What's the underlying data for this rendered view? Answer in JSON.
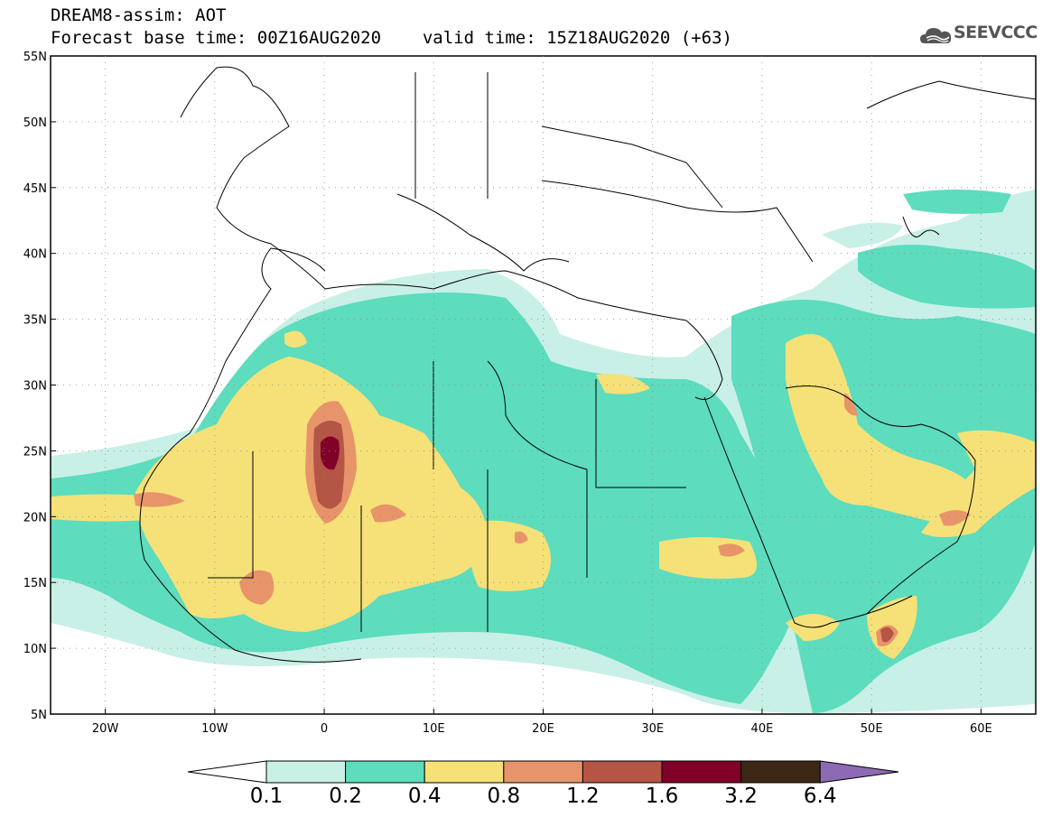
{
  "header": {
    "line1": "DREAM8-assim: AOT",
    "base_label": "Forecast base time: 00Z16AUG2020",
    "valid_label": "valid time: 15Z18AUG2020 (+63)"
  },
  "logo": {
    "text": "SEEVCCC",
    "icon": "cloud-logo-icon"
  },
  "map": {
    "projection": "lat-lon",
    "lon_range": [
      -25,
      65
    ],
    "lat_range": [
      5,
      55
    ],
    "lat_ticks": [
      "55N",
      "50N",
      "45N",
      "40N",
      "35N",
      "30N",
      "25N",
      "20N",
      "15N",
      "10N",
      "5N"
    ],
    "lon_ticks": [
      "20W",
      "10W",
      "0",
      "10E",
      "20E",
      "30E",
      "40E",
      "50E",
      "60E"
    ],
    "gridlines": "dotted"
  },
  "colorbar": {
    "labels": [
      "0.1",
      "0.2",
      "0.4",
      "0.8",
      "1.2",
      "1.6",
      "3.2",
      "6.4"
    ],
    "colors": [
      "#ffffff",
      "#c8f0e6",
      "#5ddcbe",
      "#f5e178",
      "#e8946a",
      "#b45546",
      "#800028",
      "#3c2814",
      "#8c6ab4"
    ]
  },
  "chart_data": {
    "type": "heatmap",
    "variable": "AOT",
    "levels": [
      0.1,
      0.2,
      0.4,
      0.8,
      1.2,
      1.6,
      3.2,
      6.4
    ],
    "features": [
      {
        "lon": 0.5,
        "lat": 24.5,
        "max_level": 3.2
      },
      {
        "lon": -6,
        "lat": 15.5,
        "max_level": 1.2
      },
      {
        "lon": -16,
        "lat": 21.5,
        "max_level": 1.2
      },
      {
        "lon": 37,
        "lat": 16,
        "max_level": 1.2
      },
      {
        "lon": 56,
        "lat": 20,
        "max_level": 1.2
      },
      {
        "lon": 51,
        "lat": 11.5,
        "max_level": 1.6
      },
      {
        "lon": 48,
        "lat": 26.5,
        "max_level": 1.2
      }
    ]
  }
}
